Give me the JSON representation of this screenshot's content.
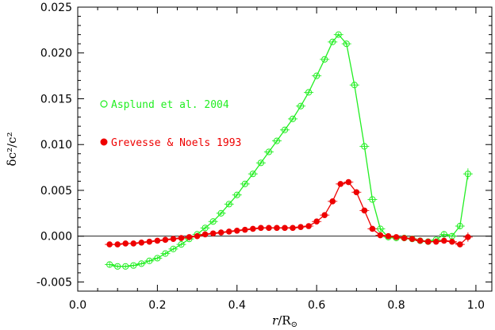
{
  "chart_data": {
    "type": "scatter",
    "xlabel": "r/R⊙",
    "ylabel": "δc²/c²",
    "xlim": [
      0.0,
      1.04
    ],
    "ylim": [
      -0.006,
      0.025
    ],
    "x_ticks": [
      0.0,
      0.2,
      0.4,
      0.6,
      0.8,
      1.0
    ],
    "x_tick_labels": [
      "0.0",
      "0.2",
      "0.4",
      "0.6",
      "0.8",
      "1.0"
    ],
    "y_ticks": [
      -0.005,
      0.0,
      0.005,
      0.01,
      0.015,
      0.02,
      0.025
    ],
    "y_tick_labels": [
      "-0.005",
      "0.000",
      "0.005",
      "0.010",
      "0.015",
      "0.020",
      "0.025"
    ],
    "zero_line": true,
    "grid": false,
    "legend_position": "left",
    "series": [
      {
        "name": "Asplund et al. 2004",
        "color": "#22ee22",
        "marker": "open-circle",
        "connected": true,
        "x": [
          0.08,
          0.1,
          0.12,
          0.14,
          0.16,
          0.18,
          0.2,
          0.22,
          0.24,
          0.26,
          0.28,
          0.3,
          0.32,
          0.34,
          0.36,
          0.38,
          0.4,
          0.42,
          0.44,
          0.46,
          0.48,
          0.5,
          0.52,
          0.54,
          0.56,
          0.58,
          0.6,
          0.62,
          0.64,
          0.655,
          0.675,
          0.695,
          0.72,
          0.74,
          0.76,
          0.78,
          0.8,
          0.82,
          0.84,
          0.86,
          0.88,
          0.9,
          0.92,
          0.94,
          0.96,
          0.98
        ],
        "y": [
          -0.0031,
          -0.0033,
          -0.0033,
          -0.0032,
          -0.003,
          -0.0027,
          -0.0024,
          -0.0019,
          -0.0014,
          -0.0009,
          -0.0003,
          0.0002,
          0.0009,
          0.0016,
          0.0025,
          0.0035,
          0.0045,
          0.0057,
          0.0068,
          0.008,
          0.0092,
          0.0104,
          0.0116,
          0.0128,
          0.0142,
          0.0157,
          0.0175,
          0.0193,
          0.0212,
          0.022,
          0.021,
          0.0165,
          0.0098,
          0.004,
          0.0008,
          -0.0001,
          -0.0002,
          -0.0002,
          -0.0003,
          -0.0005,
          -0.0006,
          -0.0004,
          0.0002,
          0.0,
          0.0011,
          0.0068
        ],
        "x_err": [
          0.012,
          0.012,
          0.012,
          0.012,
          0.012,
          0.012,
          0.012,
          0.012,
          0.012,
          0.012,
          0.012,
          0.012,
          0.012,
          0.012,
          0.012,
          0.012,
          0.012,
          0.012,
          0.012,
          0.012,
          0.012,
          0.012,
          0.012,
          0.012,
          0.012,
          0.012,
          0.012,
          0.012,
          0.012,
          0.012,
          0.012,
          0.012,
          0.012,
          0.012,
          0.012,
          0.012,
          0.012,
          0.012,
          0.012,
          0.012,
          0.012,
          0.012,
          0.012,
          0.012,
          0.012,
          0.012
        ],
        "y_err": [
          0.0003,
          0.0002,
          0.0002,
          0.0002,
          0.0002,
          0.0002,
          0.0002,
          0.0002,
          0.0002,
          0.0002,
          0.0002,
          0.0002,
          0.0002,
          0.0002,
          0.0002,
          0.0002,
          0.0002,
          0.0002,
          0.0002,
          0.0002,
          0.0002,
          0.0002,
          0.0002,
          0.0002,
          0.0002,
          0.0002,
          0.0002,
          0.0002,
          0.0002,
          0.0002,
          0.0002,
          0.0002,
          0.0002,
          0.0002,
          0.0002,
          0.0002,
          0.0002,
          0.0002,
          0.0002,
          0.0002,
          0.0002,
          0.0002,
          0.0003,
          0.0003,
          0.0003,
          0.0006
        ]
      },
      {
        "name": "Grevesse & Noels 1993",
        "color": "#ee0000",
        "marker": "filled-circle",
        "connected": true,
        "x": [
          0.08,
          0.1,
          0.12,
          0.14,
          0.16,
          0.18,
          0.2,
          0.22,
          0.24,
          0.26,
          0.28,
          0.3,
          0.32,
          0.34,
          0.36,
          0.38,
          0.4,
          0.42,
          0.44,
          0.46,
          0.48,
          0.5,
          0.52,
          0.54,
          0.56,
          0.58,
          0.6,
          0.62,
          0.64,
          0.66,
          0.68,
          0.7,
          0.72,
          0.74,
          0.76,
          0.78,
          0.8,
          0.82,
          0.84,
          0.86,
          0.88,
          0.9,
          0.92,
          0.94,
          0.96,
          0.98
        ],
        "y": [
          -0.0009,
          -0.0009,
          -0.0008,
          -0.0008,
          -0.0007,
          -0.0006,
          -0.0005,
          -0.0004,
          -0.0003,
          -0.0002,
          -0.0001,
          0.0,
          0.0002,
          0.0003,
          0.0004,
          0.0005,
          0.0006,
          0.0007,
          0.0008,
          0.0009,
          0.0009,
          0.0009,
          0.0009,
          0.0009,
          0.001,
          0.0011,
          0.0016,
          0.0023,
          0.0038,
          0.0057,
          0.0059,
          0.0048,
          0.0028,
          0.0008,
          0.0001,
          0.0,
          -0.0001,
          -0.0002,
          -0.0003,
          -0.0005,
          -0.0006,
          -0.0006,
          -0.0005,
          -0.0006,
          -0.0009,
          -0.0001
        ],
        "x_err": [
          0.012,
          0.012,
          0.012,
          0.012,
          0.012,
          0.012,
          0.012,
          0.012,
          0.012,
          0.012,
          0.012,
          0.012,
          0.012,
          0.012,
          0.012,
          0.012,
          0.012,
          0.012,
          0.012,
          0.012,
          0.012,
          0.012,
          0.012,
          0.012,
          0.012,
          0.012,
          0.012,
          0.012,
          0.012,
          0.012,
          0.012,
          0.012,
          0.012,
          0.012,
          0.012,
          0.012,
          0.012,
          0.012,
          0.012,
          0.012,
          0.012,
          0.012,
          0.012,
          0.012,
          0.012,
          0.012
        ],
        "y_err": [
          0.0002,
          0.0002,
          0.0002,
          0.0002,
          0.0002,
          0.0002,
          0.0002,
          0.0002,
          0.0002,
          0.0002,
          0.0002,
          0.0002,
          0.0002,
          0.0002,
          0.0002,
          0.0002,
          0.0002,
          0.0002,
          0.0002,
          0.0002,
          0.0002,
          0.0002,
          0.0002,
          0.0002,
          0.0002,
          0.0002,
          0.0002,
          0.0002,
          0.0002,
          0.0002,
          0.0002,
          0.0002,
          0.0002,
          0.0002,
          0.0002,
          0.0002,
          0.0002,
          0.0002,
          0.0002,
          0.0002,
          0.0002,
          0.0002,
          0.0002,
          0.0002,
          0.0003,
          0.0005
        ]
      }
    ]
  }
}
